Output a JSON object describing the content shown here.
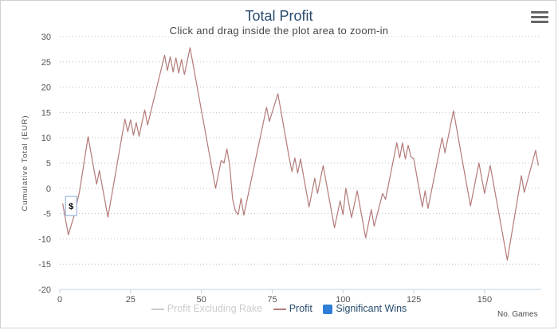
{
  "header": {
    "title": "Total Profit",
    "subtitle": "Click and drag inside the plot area to zoom-in"
  },
  "icons": {
    "menu": "hamburger-menu-icon"
  },
  "colors": {
    "profit": "#b47a7a",
    "profit_excl_rake": "#cccccc",
    "significant_wins": "#2f7ed8",
    "grid": "#c0c0c0"
  },
  "chart_data": {
    "type": "line",
    "xlabel": "No. Games",
    "ylabel": "Cumulative Total (EUR)",
    "xlim": [
      0,
      170
    ],
    "ylim": [
      -20,
      30
    ],
    "xticks": [
      0,
      25,
      50,
      75,
      100,
      125,
      150
    ],
    "yticks": [
      30,
      25,
      20,
      15,
      10,
      5,
      0,
      -5,
      -10,
      -15,
      -20
    ],
    "grid": true,
    "legend_placement": "bottom-center",
    "legend": [
      {
        "name": "Profit Excluding Rake",
        "visible": false
      },
      {
        "name": "Profit",
        "visible": true
      },
      {
        "name": "Significant Wins",
        "visible": true
      }
    ],
    "series": [
      {
        "name": "Profit",
        "points": [
          [
            1,
            -3
          ],
          [
            3,
            -9.2
          ],
          [
            5,
            -5.5
          ],
          [
            7,
            -0.5
          ],
          [
            10,
            10.2
          ],
          [
            13,
            0.8
          ],
          [
            14,
            3.5
          ],
          [
            17,
            -5.7
          ],
          [
            23,
            13.7
          ],
          [
            24,
            11.2
          ],
          [
            25,
            13.5
          ],
          [
            26,
            10.5
          ],
          [
            27,
            13
          ],
          [
            28,
            10.3
          ],
          [
            30,
            15.5
          ],
          [
            31,
            12.5
          ],
          [
            37,
            26.3
          ],
          [
            38,
            23.3
          ],
          [
            39,
            26
          ],
          [
            40,
            23
          ],
          [
            41,
            25.8
          ],
          [
            42,
            22.8
          ],
          [
            43,
            25.5
          ],
          [
            44,
            22.5
          ],
          [
            46,
            27.8
          ],
          [
            55,
            0
          ],
          [
            57,
            5.5
          ],
          [
            58,
            5
          ],
          [
            59,
            7.8
          ],
          [
            60,
            4.5
          ],
          [
            61,
            -2
          ],
          [
            62,
            -4.5
          ],
          [
            63,
            -5.2
          ],
          [
            64,
            -2
          ],
          [
            65,
            -5.3
          ],
          [
            73,
            16
          ],
          [
            74,
            13.2
          ],
          [
            77,
            18.7
          ],
          [
            81,
            6
          ],
          [
            82,
            3.3
          ],
          [
            83,
            6
          ],
          [
            84,
            3
          ],
          [
            85,
            5.8
          ],
          [
            88,
            -3.7
          ],
          [
            90,
            2
          ],
          [
            91,
            -1
          ],
          [
            93,
            4.5
          ],
          [
            97,
            -7.8
          ],
          [
            99,
            -2.5
          ],
          [
            100,
            -5.2
          ],
          [
            101,
            0
          ],
          [
            103,
            -5.8
          ],
          [
            105,
            -0.5
          ],
          [
            108,
            -9.8
          ],
          [
            110,
            -4.2
          ],
          [
            111,
            -7.5
          ],
          [
            114,
            -1
          ],
          [
            115,
            -2.2
          ],
          [
            119,
            9
          ],
          [
            120,
            6
          ],
          [
            121,
            9
          ],
          [
            122,
            5.8
          ],
          [
            123,
            8.5
          ],
          [
            124,
            6.2
          ],
          [
            125,
            5.8
          ],
          [
            128,
            -3.7
          ],
          [
            129,
            -0.5
          ],
          [
            130,
            -4
          ],
          [
            135,
            10
          ],
          [
            136,
            7
          ],
          [
            139,
            15.3
          ],
          [
            145,
            -3.5
          ],
          [
            148,
            5
          ],
          [
            150,
            -1
          ],
          [
            152,
            4.5
          ],
          [
            158,
            -14.2
          ],
          [
            163,
            2.5
          ],
          [
            164,
            -0.8
          ],
          [
            168,
            7.5
          ],
          [
            169,
            4.5
          ]
        ]
      }
    ],
    "markers": [
      {
        "series": "Significant Wins",
        "x": 4,
        "y": -3.5,
        "label": "$"
      }
    ]
  }
}
